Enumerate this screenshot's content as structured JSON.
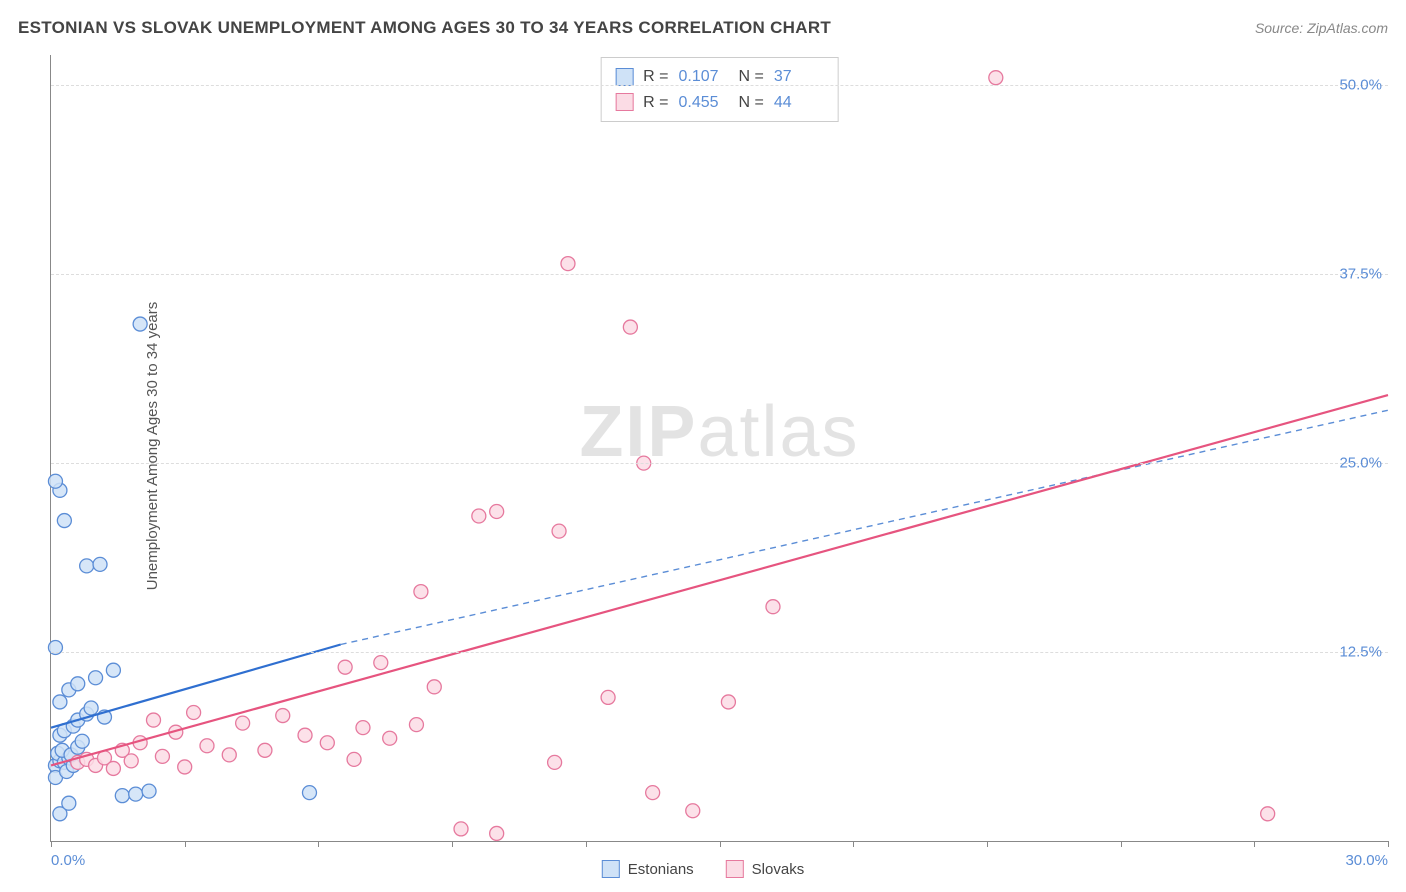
{
  "title": "ESTONIAN VS SLOVAK UNEMPLOYMENT AMONG AGES 30 TO 34 YEARS CORRELATION CHART",
  "source_label": "Source: ZipAtlas.com",
  "y_axis_label": "Unemployment Among Ages 30 to 34 years",
  "watermark": {
    "bold": "ZIP",
    "light": "atlas"
  },
  "chart": {
    "type": "scatter",
    "xlim": [
      0,
      30
    ],
    "ylim": [
      0,
      52
    ],
    "x_ticks": [
      0,
      3,
      6,
      9,
      12,
      15,
      18,
      21,
      24,
      27,
      30
    ],
    "x_tick_labels": {
      "0": "0.0%",
      "30": "30.0%"
    },
    "y_ticks": [
      12.5,
      25.0,
      37.5,
      50.0
    ],
    "y_tick_labels": [
      "12.5%",
      "25.0%",
      "37.5%",
      "50.0%"
    ],
    "background_color": "#ffffff",
    "grid_color": "#dddddd",
    "axis_color": "#888888",
    "tick_label_color": "#5b8dd6",
    "series": [
      {
        "key": "estonians",
        "label": "Estonians",
        "R": "0.107",
        "N": "37",
        "marker_fill": "#cfe2f7",
        "marker_stroke": "#5b8dd6",
        "marker_radius": 7,
        "trend": {
          "solid": {
            "x1": 0,
            "y1": 7.5,
            "x2": 6.5,
            "y2": 13.0,
            "color": "#2f6fd0",
            "width": 2.2
          },
          "dashed": {
            "x1": 6.5,
            "y1": 13.0,
            "x2": 30,
            "y2": 28.5,
            "color": "#5b8dd6",
            "width": 1.4,
            "dash": "6,5"
          }
        },
        "points": [
          [
            0.1,
            5.0
          ],
          [
            0.2,
            5.3
          ],
          [
            0.15,
            5.8
          ],
          [
            0.3,
            5.2
          ],
          [
            0.4,
            5.5
          ],
          [
            0.25,
            6.0
          ],
          [
            0.1,
            4.2
          ],
          [
            0.35,
            4.6
          ],
          [
            0.5,
            5.0
          ],
          [
            0.45,
            5.7
          ],
          [
            0.6,
            6.2
          ],
          [
            0.7,
            6.6
          ],
          [
            0.2,
            7.0
          ],
          [
            0.3,
            7.3
          ],
          [
            0.5,
            7.6
          ],
          [
            0.6,
            8.0
          ],
          [
            0.8,
            8.4
          ],
          [
            0.9,
            8.8
          ],
          [
            0.2,
            9.2
          ],
          [
            0.4,
            10.0
          ],
          [
            0.6,
            10.4
          ],
          [
            1.0,
            10.8
          ],
          [
            1.2,
            8.2
          ],
          [
            1.4,
            11.3
          ],
          [
            0.1,
            12.8
          ],
          [
            0.8,
            18.2
          ],
          [
            1.1,
            18.3
          ],
          [
            0.3,
            21.2
          ],
          [
            0.2,
            23.2
          ],
          [
            0.1,
            23.8
          ],
          [
            2.0,
            34.2
          ],
          [
            1.6,
            3.0
          ],
          [
            1.9,
            3.1
          ],
          [
            5.8,
            3.2
          ],
          [
            2.2,
            3.3
          ],
          [
            0.2,
            1.8
          ],
          [
            0.4,
            2.5
          ]
        ]
      },
      {
        "key": "slovaks",
        "label": "Slovaks",
        "R": "0.455",
        "N": "44",
        "marker_fill": "#fbdce5",
        "marker_stroke": "#e6799e",
        "marker_radius": 7,
        "trend": {
          "solid": {
            "x1": 0,
            "y1": 5.0,
            "x2": 30,
            "y2": 29.5,
            "color": "#e6547f",
            "width": 2.2
          }
        },
        "points": [
          [
            0.6,
            5.2
          ],
          [
            0.8,
            5.4
          ],
          [
            1.0,
            5.0
          ],
          [
            1.2,
            5.5
          ],
          [
            1.4,
            4.8
          ],
          [
            1.6,
            6.0
          ],
          [
            1.8,
            5.3
          ],
          [
            2.0,
            6.5
          ],
          [
            2.3,
            8.0
          ],
          [
            2.5,
            5.6
          ],
          [
            2.8,
            7.2
          ],
          [
            3.0,
            4.9
          ],
          [
            3.2,
            8.5
          ],
          [
            3.5,
            6.3
          ],
          [
            4.0,
            5.7
          ],
          [
            4.3,
            7.8
          ],
          [
            4.8,
            6.0
          ],
          [
            5.2,
            8.3
          ],
          [
            5.7,
            7.0
          ],
          [
            6.2,
            6.5
          ],
          [
            6.6,
            11.5
          ],
          [
            6.8,
            5.4
          ],
          [
            7.0,
            7.5
          ],
          [
            7.4,
            11.8
          ],
          [
            7.6,
            6.8
          ],
          [
            8.2,
            7.7
          ],
          [
            8.3,
            16.5
          ],
          [
            8.6,
            10.2
          ],
          [
            9.6,
            21.5
          ],
          [
            10.0,
            21.8
          ],
          [
            11.3,
            5.2
          ],
          [
            11.4,
            20.5
          ],
          [
            11.6,
            38.2
          ],
          [
            12.5,
            9.5
          ],
          [
            13.0,
            34.0
          ],
          [
            13.3,
            25.0
          ],
          [
            13.5,
            3.2
          ],
          [
            14.4,
            2.0
          ],
          [
            15.2,
            9.2
          ],
          [
            16.2,
            15.5
          ],
          [
            21.2,
            50.5
          ],
          [
            27.3,
            1.8
          ],
          [
            9.2,
            0.8
          ],
          [
            10.0,
            0.5
          ]
        ]
      }
    ]
  },
  "stats_box": {
    "R_label": "R =",
    "N_label": "N ="
  }
}
